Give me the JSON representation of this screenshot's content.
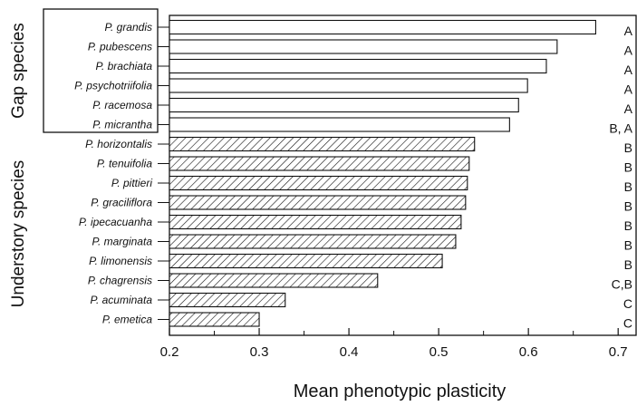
{
  "chart_data": {
    "type": "bar",
    "orientation": "horizontal",
    "xlabel": "Mean phenotypic plasticity",
    "xlim": [
      0.2,
      0.72
    ],
    "xticks": [
      "0.2",
      "0.3",
      "0.4",
      "0.5",
      "0.6",
      "0.7"
    ],
    "groups": [
      {
        "label": "Gap species",
        "fill": "open"
      },
      {
        "label": "Understory species",
        "fill": "hatched"
      }
    ],
    "bars": [
      {
        "category": "P. grandis",
        "value": 0.675,
        "group": 0,
        "letter": "A"
      },
      {
        "category": "P. pubescens",
        "value": 0.632,
        "group": 0,
        "letter": "A"
      },
      {
        "category": "P. brachiata",
        "value": 0.62,
        "group": 0,
        "letter": "A"
      },
      {
        "category": "P. psychotriifolia",
        "value": 0.599,
        "group": 0,
        "letter": "A"
      },
      {
        "category": "P. racemosa",
        "value": 0.589,
        "group": 0,
        "letter": "A"
      },
      {
        "category": "P. micrantha",
        "value": 0.579,
        "group": 0,
        "letter": "B, A"
      },
      {
        "category": "P. horizontalis",
        "value": 0.54,
        "group": 1,
        "letter": "B"
      },
      {
        "category": "P. tenuifolia",
        "value": 0.534,
        "group": 1,
        "letter": "B"
      },
      {
        "category": "P. pittieri",
        "value": 0.532,
        "group": 1,
        "letter": "B"
      },
      {
        "category": "P. graciliflora",
        "value": 0.53,
        "group": 1,
        "letter": "B"
      },
      {
        "category": "P. ipecacuanha",
        "value": 0.525,
        "group": 1,
        "letter": "B"
      },
      {
        "category": "P. marginata",
        "value": 0.519,
        "group": 1,
        "letter": "B"
      },
      {
        "category": "P. limonensis",
        "value": 0.504,
        "group": 1,
        "letter": "B"
      },
      {
        "category": "P. chagrensis",
        "value": 0.432,
        "group": 1,
        "letter": "C,B"
      },
      {
        "category": "P. acuminata",
        "value": 0.329,
        "group": 1,
        "letter": "C"
      },
      {
        "category": "P. emetica",
        "value": 0.3,
        "group": 1,
        "letter": "C"
      }
    ],
    "grid": false,
    "colors": {
      "bar_edge": "#111111",
      "open_fill": "#ffffff",
      "hatch": "#111111"
    }
  }
}
